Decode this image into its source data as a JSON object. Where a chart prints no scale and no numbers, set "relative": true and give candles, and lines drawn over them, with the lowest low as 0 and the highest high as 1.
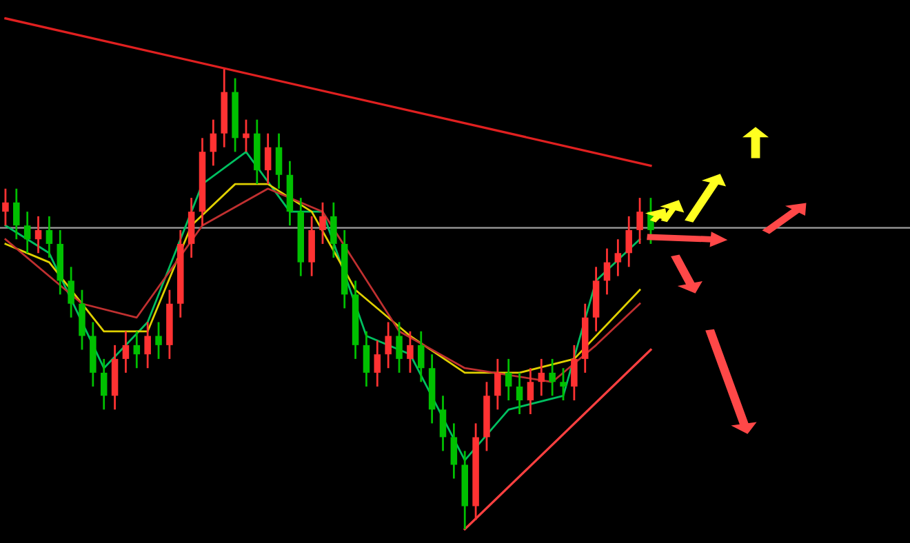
{
  "chart_data": {
    "type": "candlestick",
    "relative": true,
    "categories": [
      null,
      null,
      null,
      null,
      null,
      null,
      null,
      null,
      null,
      null,
      null,
      null,
      null,
      null,
      null,
      null,
      null,
      null,
      null,
      null,
      null,
      null,
      null,
      null,
      null,
      null,
      null,
      null,
      null,
      null,
      null,
      null,
      null,
      null,
      null,
      null,
      null,
      null,
      null,
      null,
      null,
      null,
      null,
      null,
      null,
      null,
      null,
      null,
      null,
      null,
      null,
      null,
      null,
      null,
      null,
      null,
      null,
      null,
      null,
      null
    ],
    "ohlc": [
      [
        0.69,
        0.74,
        0.66,
        0.71
      ],
      [
        0.71,
        0.74,
        0.63,
        0.66
      ],
      [
        0.66,
        0.69,
        0.6,
        0.63
      ],
      [
        0.63,
        0.68,
        0.6,
        0.65
      ],
      [
        0.65,
        0.68,
        0.59,
        0.62
      ],
      [
        0.62,
        0.65,
        0.51,
        0.54
      ],
      [
        0.54,
        0.57,
        0.46,
        0.49
      ],
      [
        0.49,
        0.52,
        0.39,
        0.42
      ],
      [
        0.42,
        0.45,
        0.31,
        0.34
      ],
      [
        0.34,
        0.37,
        0.26,
        0.29
      ],
      [
        0.29,
        0.4,
        0.26,
        0.37
      ],
      [
        0.37,
        0.43,
        0.34,
        0.4
      ],
      [
        0.4,
        0.43,
        0.35,
        0.38
      ],
      [
        0.38,
        0.45,
        0.35,
        0.42
      ],
      [
        0.42,
        0.45,
        0.37,
        0.4
      ],
      [
        0.4,
        0.52,
        0.37,
        0.49
      ],
      [
        0.49,
        0.65,
        0.46,
        0.62
      ],
      [
        0.62,
        0.72,
        0.59,
        0.69
      ],
      [
        0.69,
        0.85,
        0.66,
        0.82
      ],
      [
        0.82,
        0.89,
        0.79,
        0.86
      ],
      [
        0.86,
        1.0,
        0.83,
        0.95
      ],
      [
        0.95,
        0.98,
        0.82,
        0.85
      ],
      [
        0.85,
        0.89,
        0.82,
        0.86
      ],
      [
        0.86,
        0.89,
        0.75,
        0.78
      ],
      [
        0.78,
        0.86,
        0.75,
        0.83
      ],
      [
        0.83,
        0.86,
        0.74,
        0.77
      ],
      [
        0.77,
        0.8,
        0.66,
        0.69
      ],
      [
        0.69,
        0.72,
        0.55,
        0.58
      ],
      [
        0.58,
        0.68,
        0.55,
        0.65
      ],
      [
        0.65,
        0.71,
        0.62,
        0.68
      ],
      [
        0.68,
        0.71,
        0.59,
        0.62
      ],
      [
        0.62,
        0.65,
        0.48,
        0.51
      ],
      [
        0.51,
        0.54,
        0.37,
        0.4
      ],
      [
        0.4,
        0.43,
        0.31,
        0.34
      ],
      [
        0.34,
        0.41,
        0.31,
        0.38
      ],
      [
        0.38,
        0.45,
        0.35,
        0.42
      ],
      [
        0.42,
        0.45,
        0.34,
        0.37
      ],
      [
        0.37,
        0.43,
        0.34,
        0.4
      ],
      [
        0.4,
        0.43,
        0.32,
        0.35
      ],
      [
        0.35,
        0.38,
        0.23,
        0.26
      ],
      [
        0.26,
        0.29,
        0.17,
        0.2
      ],
      [
        0.2,
        0.23,
        0.11,
        0.14
      ],
      [
        0.14,
        0.17,
        0.0,
        0.05
      ],
      [
        0.05,
        0.23,
        0.02,
        0.2
      ],
      [
        0.2,
        0.32,
        0.17,
        0.29
      ],
      [
        0.29,
        0.37,
        0.26,
        0.34
      ],
      [
        0.34,
        0.37,
        0.28,
        0.31
      ],
      [
        0.31,
        0.34,
        0.25,
        0.28
      ],
      [
        0.28,
        0.35,
        0.25,
        0.32
      ],
      [
        0.32,
        0.37,
        0.29,
        0.34
      ],
      [
        0.34,
        0.37,
        0.29,
        0.32
      ],
      [
        0.32,
        0.35,
        0.28,
        0.31
      ],
      [
        0.31,
        0.4,
        0.28,
        0.37
      ],
      [
        0.37,
        0.49,
        0.34,
        0.46
      ],
      [
        0.46,
        0.57,
        0.43,
        0.54
      ],
      [
        0.54,
        0.61,
        0.51,
        0.58
      ],
      [
        0.58,
        0.63,
        0.55,
        0.6
      ],
      [
        0.6,
        0.68,
        0.57,
        0.65
      ],
      [
        0.65,
        0.72,
        0.62,
        0.69
      ],
      [
        0.69,
        0.72,
        0.62,
        0.65
      ]
    ],
    "colors": [
      "#ff3232",
      "#00c000",
      "#00c000",
      "#ff3232",
      "#00c000",
      "#00c000",
      "#00c000",
      "#00c000",
      "#00c000",
      "#00c000",
      "#ff3232",
      "#ff3232",
      "#00c000",
      "#ff3232",
      "#00c000",
      "#ff3232",
      "#ff3232",
      "#ff3232",
      "#ff3232",
      "#ff3232",
      "#ff3232",
      "#00c000",
      "#ff3232",
      "#00c000",
      "#ff3232",
      "#00c000",
      "#00c000",
      "#00c000",
      "#ff3232",
      "#ff3232",
      "#00c000",
      "#00c000",
      "#00c000",
      "#00c000",
      "#ff3232",
      "#ff3232",
      "#00c000",
      "#ff3232",
      "#00c000",
      "#00c000",
      "#00c000",
      "#00c000",
      "#00c000",
      "#ff3232",
      "#ff3232",
      "#ff3232",
      "#00c000",
      "#00c000",
      "#ff3232",
      "#ff3232",
      "#00c000",
      "#00c000",
      "#ff3232",
      "#ff3232",
      "#ff3232",
      "#ff3232",
      "#ff3232",
      "#ff3232",
      "#ff3232",
      "#00c000"
    ],
    "series": [
      {
        "type": "line",
        "color": "#00c060",
        "values": [
          0.66,
          null,
          null,
          null,
          0.6,
          null,
          null,
          null,
          null,
          0.35,
          null,
          null,
          null,
          0.45,
          null,
          null,
          null,
          null,
          0.75,
          null,
          null,
          null,
          0.82,
          null,
          null,
          null,
          0.69,
          null,
          null,
          0.69,
          null,
          null,
          null,
          0.42,
          null,
          null,
          null,
          0.38,
          null,
          null,
          null,
          null,
          0.15,
          null,
          null,
          null,
          0.26,
          null,
          null,
          null,
          null,
          0.29,
          null,
          null,
          0.54,
          null,
          null,
          null,
          0.63,
          null
        ]
      },
      {
        "type": "line",
        "color": "#e0d000",
        "values": [
          0.62,
          null,
          null,
          null,
          0.58,
          null,
          null,
          null,
          null,
          0.43,
          null,
          null,
          null,
          0.43,
          null,
          null,
          null,
          0.66,
          null,
          null,
          null,
          0.75,
          null,
          null,
          0.75,
          null,
          null,
          null,
          0.69,
          null,
          null,
          null,
          0.52,
          null,
          null,
          null,
          null,
          0.42,
          null,
          null,
          null,
          null,
          0.34,
          null,
          null,
          null,
          null,
          0.34,
          null,
          null,
          null,
          null,
          0.37,
          null,
          null,
          null,
          null,
          null,
          0.52,
          null
        ]
      },
      {
        "type": "line",
        "color": "#c03030",
        "values": [
          0.63,
          null,
          null,
          null,
          null,
          null,
          null,
          0.49,
          null,
          null,
          null,
          null,
          0.46,
          null,
          null,
          null,
          null,
          null,
          0.66,
          null,
          null,
          null,
          null,
          null,
          0.74,
          null,
          null,
          null,
          null,
          0.69,
          null,
          null,
          null,
          null,
          null,
          null,
          0.43,
          null,
          null,
          null,
          null,
          null,
          0.35,
          null,
          null,
          null,
          null,
          null,
          null,
          null,
          0.32,
          null,
          null,
          null,
          0.4,
          null,
          null,
          null,
          0.49,
          null
        ]
      },
      {
        "type": "line",
        "color": "#e02020",
        "values": [
          1.11,
          null,
          null,
          null,
          null,
          null,
          null,
          null,
          null,
          null,
          null,
          null,
          null,
          null,
          null,
          null,
          null,
          null,
          null,
          null,
          null,
          null,
          null,
          null,
          null,
          null,
          null,
          null,
          null,
          null,
          null,
          null,
          null,
          null,
          null,
          null,
          null,
          null,
          null,
          null,
          null,
          null,
          null,
          null,
          null,
          null,
          null,
          null,
          null,
          null,
          null,
          null,
          null,
          null,
          null,
          null,
          null,
          null,
          null,
          0.79
        ]
      },
      {
        "type": "line",
        "color": "#ff4040",
        "values": [
          null,
          null,
          null,
          null,
          null,
          null,
          null,
          null,
          null,
          null,
          null,
          null,
          null,
          null,
          null,
          null,
          null,
          null,
          null,
          null,
          null,
          null,
          null,
          null,
          null,
          null,
          null,
          null,
          null,
          null,
          null,
          null,
          null,
          null,
          null,
          null,
          null,
          null,
          null,
          null,
          null,
          null,
          0.0,
          null,
          null,
          null,
          null,
          null,
          null,
          null,
          null,
          null,
          null,
          null,
          null,
          null,
          null,
          null,
          null,
          0.39
        ]
      }
    ],
    "ref_lines": [
      {
        "axis": "y",
        "value": 0.655,
        "color": "#a0a0a0"
      }
    ],
    "tick_labels": false
  }
}
